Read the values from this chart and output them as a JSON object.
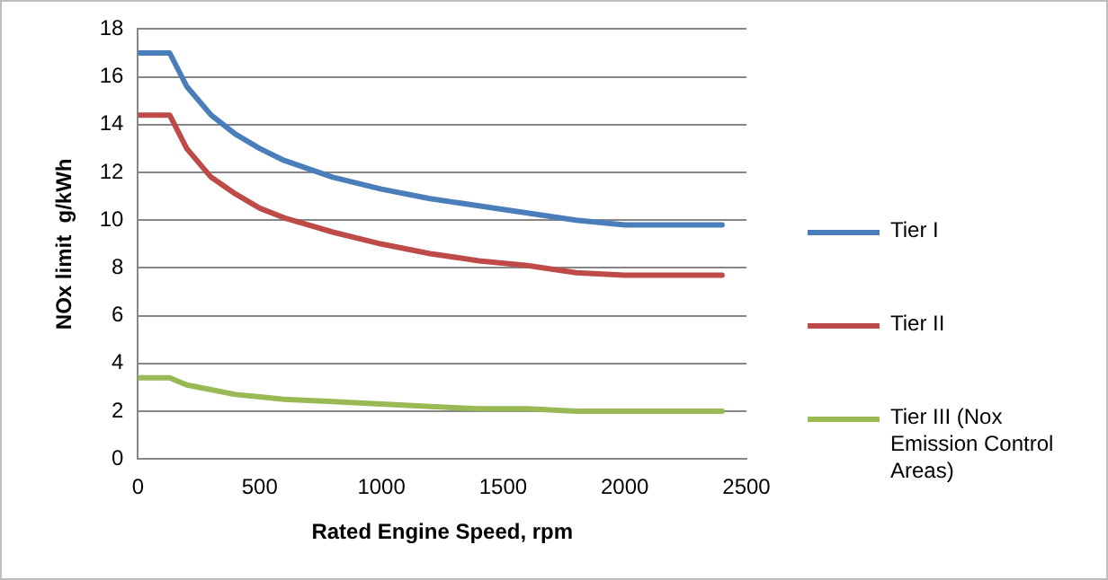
{
  "chart_data": {
    "type": "line",
    "xlabel": "Rated Engine Speed, rpm",
    "ylabel": "NOx limit  g/kWh",
    "x": [
      0,
      130,
      200,
      300,
      400,
      500,
      600,
      800,
      1000,
      1200,
      1400,
      1600,
      1800,
      2000,
      2400
    ],
    "series": [
      {
        "name": "Tier I",
        "color": "#4a7ebb",
        "values": [
          17,
          17,
          15.6,
          14.4,
          13.6,
          13.0,
          12.5,
          11.8,
          11.3,
          10.9,
          10.6,
          10.3,
          10.0,
          9.8,
          9.8
        ]
      },
      {
        "name": "Tier II",
        "color": "#be4b48",
        "values": [
          14.4,
          14.4,
          13.0,
          11.8,
          11.1,
          10.5,
          10.1,
          9.5,
          9.0,
          8.6,
          8.3,
          8.1,
          7.8,
          7.7,
          7.7
        ]
      },
      {
        "name": "Tier III (Nox Emission Control Areas)",
        "color": "#98b954",
        "values": [
          3.4,
          3.4,
          3.1,
          2.9,
          2.7,
          2.6,
          2.5,
          2.4,
          2.3,
          2.2,
          2.1,
          2.1,
          2.0,
          2.0,
          2.0
        ]
      }
    ],
    "xlim": [
      0,
      2500
    ],
    "xticks": [
      0,
      500,
      1000,
      1500,
      2000,
      2500
    ],
    "ylim": [
      0,
      18
    ],
    "yticks": [
      0,
      2,
      4,
      6,
      8,
      10,
      12,
      14,
      16,
      18
    ],
    "grid": "y",
    "legend": "right",
    "marker": "none",
    "line_style": "solid"
  }
}
